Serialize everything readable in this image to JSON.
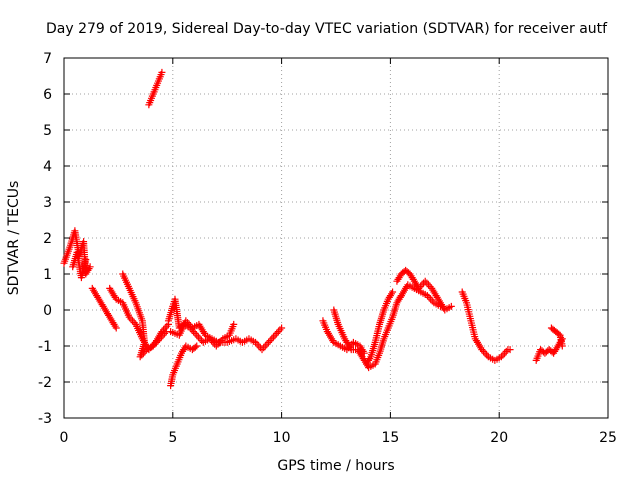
{
  "chart_data": {
    "type": "scatter",
    "title": "Day 279 of 2019, Sidereal Day-to-day VTEC variation (SDTVAR) for receiver autf",
    "xlabel": "GPS time / hours",
    "ylabel": "SDTVAR / TECUs",
    "xlim": [
      0,
      25
    ],
    "ylim": [
      -3,
      7
    ],
    "xticks": [
      0,
      5,
      10,
      15,
      20,
      25
    ],
    "yticks": [
      -3,
      -2,
      -1,
      0,
      1,
      2,
      3,
      4,
      5,
      6,
      7
    ],
    "grid": true,
    "marker": "+",
    "series": [
      {
        "name": "SDTVAR",
        "color": "#ff0000",
        "tracks": [
          [
            [
              0.0,
              1.3
            ],
            [
              0.3,
              1.8
            ],
            [
              0.5,
              2.2
            ],
            [
              0.7,
              1.5
            ],
            [
              0.9,
              1.9
            ],
            [
              1.0,
              1.0
            ],
            [
              1.2,
              1.2
            ]
          ],
          [
            [
              0.4,
              1.2
            ],
            [
              0.6,
              1.6
            ],
            [
              0.8,
              0.9
            ],
            [
              1.0,
              1.4
            ]
          ],
          [
            [
              1.3,
              0.6
            ],
            [
              1.5,
              0.4
            ],
            [
              1.8,
              0.1
            ],
            [
              2.1,
              -0.2
            ],
            [
              2.4,
              -0.5
            ]
          ],
          [
            [
              2.1,
              0.6
            ],
            [
              2.4,
              0.3
            ],
            [
              2.7,
              0.2
            ],
            [
              3.0,
              -0.2
            ],
            [
              3.3,
              -0.4
            ],
            [
              3.6,
              -0.8
            ],
            [
              3.9,
              -1.1
            ],
            [
              4.2,
              -0.9
            ],
            [
              4.5,
              -0.6
            ],
            [
              4.8,
              -0.4
            ]
          ],
          [
            [
              2.7,
              1.0
            ],
            [
              3.0,
              0.6
            ],
            [
              3.3,
              0.2
            ],
            [
              3.6,
              -0.3
            ],
            [
              3.7,
              -0.9
            ],
            [
              3.5,
              -1.3
            ],
            [
              3.8,
              -1.1
            ],
            [
              4.1,
              -1.0
            ],
            [
              4.4,
              -0.8
            ],
            [
              4.7,
              -0.6
            ]
          ],
          [
            [
              3.9,
              5.7
            ],
            [
              4.1,
              6.0
            ],
            [
              4.3,
              6.3
            ],
            [
              4.5,
              6.6
            ]
          ],
          [
            [
              4.9,
              -2.1
            ],
            [
              5.0,
              -1.8
            ],
            [
              5.2,
              -1.5
            ],
            [
              5.4,
              -1.2
            ],
            [
              5.6,
              -1.0
            ],
            [
              5.9,
              -1.1
            ],
            [
              6.1,
              -1.0
            ]
          ],
          [
            [
              4.8,
              -0.3
            ],
            [
              5.0,
              0.1
            ],
            [
              5.1,
              0.3
            ],
            [
              5.2,
              -0.1
            ],
            [
              5.3,
              -0.5
            ],
            [
              5.5,
              -0.4
            ],
            [
              5.8,
              -0.5
            ],
            [
              6.1,
              -0.7
            ],
            [
              6.4,
              -0.9
            ],
            [
              6.7,
              -0.8
            ],
            [
              7.0,
              -1.0
            ],
            [
              7.3,
              -0.8
            ],
            [
              7.6,
              -0.7
            ],
            [
              7.8,
              -0.4
            ]
          ],
          [
            [
              4.9,
              -0.6
            ],
            [
              5.3,
              -0.7
            ],
            [
              5.6,
              -0.3
            ],
            [
              5.9,
              -0.5
            ],
            [
              6.2,
              -0.4
            ],
            [
              6.5,
              -0.7
            ],
            [
              6.8,
              -0.8
            ],
            [
              7.1,
              -0.9
            ],
            [
              7.5,
              -0.9
            ],
            [
              7.9,
              -0.8
            ],
            [
              8.2,
              -0.9
            ],
            [
              8.5,
              -0.8
            ],
            [
              8.8,
              -0.9
            ],
            [
              9.1,
              -1.1
            ],
            [
              9.4,
              -0.9
            ],
            [
              9.7,
              -0.7
            ],
            [
              10.0,
              -0.5
            ]
          ],
          [
            [
              11.9,
              -0.3
            ],
            [
              12.1,
              -0.6
            ],
            [
              12.4,
              -0.9
            ],
            [
              12.7,
              -1.0
            ],
            [
              13.0,
              -1.1
            ],
            [
              13.3,
              -0.9
            ],
            [
              13.6,
              -1.0
            ],
            [
              13.8,
              -1.2
            ]
          ],
          [
            [
              12.4,
              0.0
            ],
            [
              12.6,
              -0.4
            ],
            [
              12.9,
              -0.8
            ],
            [
              13.2,
              -1.1
            ],
            [
              13.5,
              -1.1
            ],
            [
              13.8,
              -1.4
            ],
            [
              14.0,
              -1.6
            ],
            [
              14.3,
              -1.5
            ],
            [
              14.5,
              -1.2
            ],
            [
              14.7,
              -0.8
            ],
            [
              14.9,
              -0.5
            ],
            [
              15.1,
              -0.2
            ],
            [
              15.3,
              0.2
            ],
            [
              15.5,
              0.4
            ]
          ],
          [
            [
              13.9,
              -1.5
            ],
            [
              14.1,
              -1.3
            ],
            [
              14.3,
              -0.9
            ],
            [
              14.5,
              -0.4
            ],
            [
              14.7,
              0.0
            ],
            [
              14.9,
              0.3
            ],
            [
              15.1,
              0.5
            ]
          ],
          [
            [
              15.3,
              0.8
            ],
            [
              15.5,
              1.0
            ],
            [
              15.7,
              1.1
            ],
            [
              15.9,
              1.0
            ],
            [
              16.1,
              0.8
            ],
            [
              16.3,
              0.6
            ],
            [
              16.6,
              0.8
            ],
            [
              16.9,
              0.6
            ],
            [
              17.2,
              0.3
            ],
            [
              17.5,
              0.0
            ],
            [
              17.8,
              0.1
            ]
          ],
          [
            [
              15.4,
              0.3
            ],
            [
              15.6,
              0.5
            ],
            [
              15.8,
              0.7
            ],
            [
              16.1,
              0.6
            ],
            [
              16.4,
              0.5
            ],
            [
              16.7,
              0.4
            ],
            [
              17.0,
              0.2
            ],
            [
              17.3,
              0.1
            ]
          ],
          [
            [
              18.3,
              0.5
            ],
            [
              18.5,
              0.2
            ],
            [
              18.7,
              -0.3
            ],
            [
              18.9,
              -0.8
            ],
            [
              19.2,
              -1.1
            ],
            [
              19.5,
              -1.3
            ],
            [
              19.8,
              -1.4
            ],
            [
              20.1,
              -1.3
            ],
            [
              20.4,
              -1.1
            ],
            [
              20.5,
              -1.1
            ]
          ],
          [
            [
              21.7,
              -1.4
            ],
            [
              21.9,
              -1.1
            ],
            [
              22.1,
              -1.2
            ],
            [
              22.3,
              -1.1
            ],
            [
              22.5,
              -1.2
            ],
            [
              22.7,
              -1.0
            ],
            [
              22.9,
              -0.8
            ]
          ],
          [
            [
              22.4,
              -0.5
            ],
            [
              22.6,
              -0.6
            ],
            [
              22.8,
              -0.7
            ],
            [
              22.9,
              -1.0
            ]
          ]
        ]
      }
    ]
  }
}
